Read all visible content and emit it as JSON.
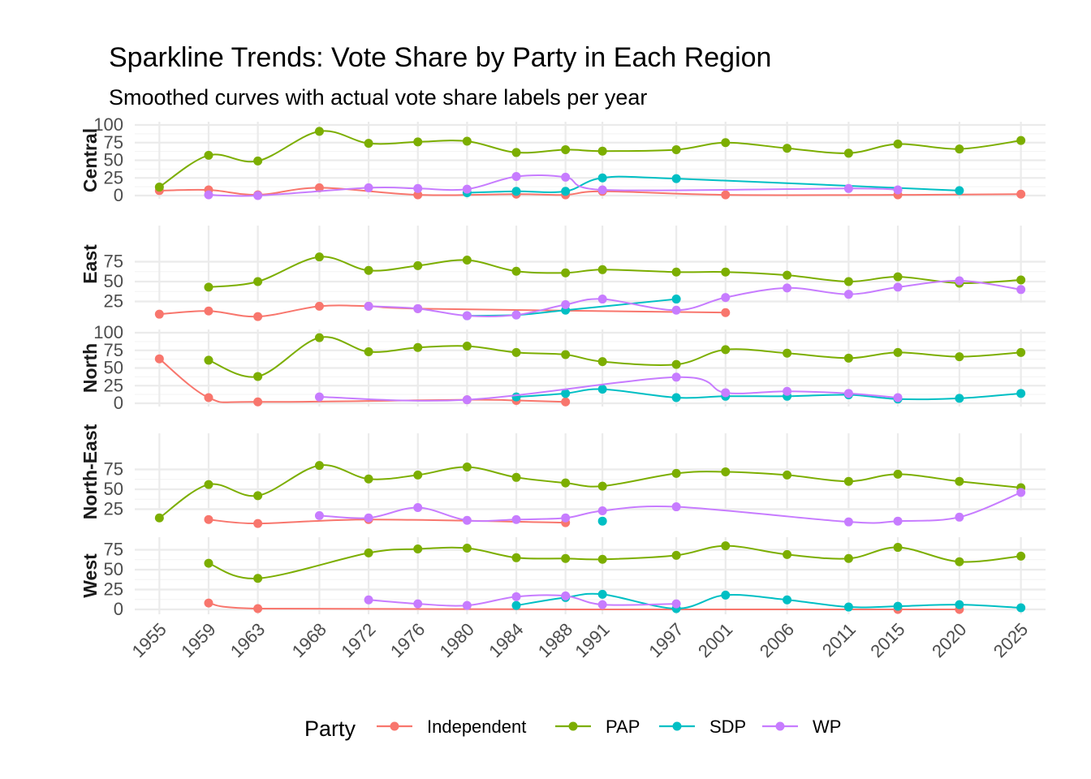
{
  "chart_data": {
    "type": "line",
    "title": "Sparkline Trends: Vote Share by Party in Each Region",
    "subtitle": "Smoothed curves with actual vote share labels per year",
    "x_ticks": [
      1955,
      1959,
      1963,
      1968,
      1972,
      1976,
      1980,
      1984,
      1988,
      1991,
      1997,
      2001,
      2006,
      2011,
      2015,
      2020,
      2025
    ],
    "legend": {
      "title": "Party",
      "position": "bottom",
      "entries": [
        "Independent",
        "PAP",
        "SDP",
        "WP"
      ]
    },
    "colors": {
      "Independent": "#F8766D",
      "PAP": "#7CAE00",
      "SDP": "#00BFC4",
      "WP": "#C77CFF"
    },
    "facets": [
      {
        "region": "Central",
        "ylim": [
          0,
          100
        ],
        "yticks": [
          0,
          25,
          50,
          75,
          100
        ],
        "series": [
          {
            "name": "Independent",
            "x": [
              1955,
              1959,
              1963,
              1968,
              1976,
              1984,
              1988,
              1991,
              2001,
              2015,
              2025
            ],
            "y": [
              7,
              8,
              1,
              11,
              1,
              2,
              1,
              6,
              1,
              1,
              2
            ]
          },
          {
            "name": "PAP",
            "x": [
              1955,
              1959,
              1963,
              1968,
              1972,
              1976,
              1980,
              1984,
              1988,
              1991,
              1997,
              2001,
              2006,
              2011,
              2015,
              2020,
              2025
            ],
            "y": [
              12,
              57,
              49,
              91,
              74,
              76,
              77,
              61,
              65,
              63,
              65,
              75,
              67,
              60,
              73,
              66,
              78
            ]
          },
          {
            "name": "SDP",
            "x": [
              1980,
              1984,
              1988,
              1991,
              1997,
              2020
            ],
            "y": [
              4,
              6,
              6,
              25,
              24,
              7
            ]
          },
          {
            "name": "WP",
            "x": [
              1959,
              1963,
              1972,
              1976,
              1980,
              1984,
              1988,
              1991,
              2011,
              2015
            ],
            "y": [
              1,
              0,
              11,
              10,
              9,
              27,
              26,
              8,
              10,
              8
            ]
          }
        ]
      },
      {
        "region": "East",
        "ylim": [
          0,
          90
        ],
        "yticks": [
          25,
          50,
          75
        ],
        "series": [
          {
            "name": "Independent",
            "x": [
              1955,
              1959,
              1963,
              1968,
              1972,
              1976,
              2001
            ],
            "y": [
              9,
              13,
              6,
              19,
              19,
              16,
              11
            ]
          },
          {
            "name": "PAP",
            "x": [
              1959,
              1963,
              1968,
              1972,
              1976,
              1980,
              1984,
              1988,
              1991,
              1997,
              2001,
              2006,
              2011,
              2015,
              2020,
              2025
            ],
            "y": [
              43,
              50,
              81,
              64,
              70,
              77,
              63,
              61,
              65,
              62,
              62,
              58,
              50,
              56,
              48,
              52
            ]
          },
          {
            "name": "SDP",
            "x": [
              1980,
              1984,
              1988,
              1997
            ],
            "y": [
              7,
              8,
              14,
              28
            ]
          },
          {
            "name": "WP",
            "x": [
              1972,
              1976,
              1980,
              1984,
              1988,
              1991,
              1997,
              2001,
              2006,
              2011,
              2015,
              2020,
              2025
            ],
            "y": [
              19,
              16,
              7,
              8,
              21,
              28,
              14,
              30,
              42,
              34,
              43,
              51,
              40
            ]
          }
        ]
      },
      {
        "region": "North",
        "ylim": [
          0,
          100
        ],
        "yticks": [
          0,
          25,
          50,
          75,
          100
        ],
        "series": [
          {
            "name": "Independent",
            "x": [
              1955,
              1959,
              1963,
              1980,
              1984,
              1988
            ],
            "y": [
              63,
              8,
              2,
              5,
              4,
              2
            ]
          },
          {
            "name": "PAP",
            "x": [
              1959,
              1963,
              1968,
              1972,
              1976,
              1980,
              1984,
              1988,
              1991,
              1997,
              2001,
              2006,
              2011,
              2015,
              2020,
              2025
            ],
            "y": [
              61,
              38,
              93,
              73,
              79,
              81,
              72,
              69,
              59,
              55,
              76,
              71,
              64,
              72,
              66,
              72
            ]
          },
          {
            "name": "SDP",
            "x": [
              1984,
              1988,
              1991,
              1997,
              2001,
              2006,
              2011,
              2015,
              2020,
              2025
            ],
            "y": [
              9,
              14,
              20,
              8,
              10,
              10,
              12,
              6,
              7,
              14
            ]
          },
          {
            "name": "WP",
            "x": [
              1968,
              1980,
              1997,
              2001,
              2006,
              2011,
              2015
            ],
            "y": [
              9,
              5,
              37,
              15,
              17,
              14,
              8
            ]
          }
        ]
      },
      {
        "region": "North-East",
        "ylim": [
          0,
          90
        ],
        "yticks": [
          25,
          50,
          75
        ],
        "series": [
          {
            "name": "Independent",
            "x": [
              1959,
              1963,
              1972,
              1988
            ],
            "y": [
              12,
              7,
              12,
              8
            ]
          },
          {
            "name": "PAP",
            "x": [
              1955,
              1959,
              1963,
              1968,
              1972,
              1976,
              1980,
              1984,
              1988,
              1991,
              1997,
              2001,
              2006,
              2011,
              2015,
              2020,
              2025
            ],
            "y": [
              14,
              56,
              42,
              80,
              63,
              68,
              78,
              65,
              58,
              54,
              70,
              72,
              68,
              60,
              69,
              60,
              52
            ]
          },
          {
            "name": "SDP",
            "x": [
              1991
            ],
            "y": [
              10
            ]
          },
          {
            "name": "WP",
            "x": [
              1968,
              1972,
              1976,
              1980,
              1984,
              1988,
              1991,
              1997,
              2011,
              2015,
              2020,
              2025
            ],
            "y": [
              17,
              14,
              27,
              11,
              12,
              14,
              23,
              28,
              9,
              10,
              15,
              46
            ]
          }
        ]
      },
      {
        "region": "West",
        "ylim": [
          0,
          90
        ],
        "yticks": [
          0,
          25,
          50,
          75
        ],
        "series": [
          {
            "name": "Independent",
            "x": [
              1959,
              1963,
              2015,
              2020
            ],
            "y": [
              8,
              1,
              0,
              0
            ]
          },
          {
            "name": "PAP",
            "x": [
              1959,
              1963,
              1972,
              1976,
              1980,
              1984,
              1988,
              1991,
              1997,
              2001,
              2006,
              2011,
              2015,
              2020,
              2025
            ],
            "y": [
              58,
              39,
              71,
              76,
              77,
              65,
              64,
              63,
              68,
              80,
              69,
              64,
              78,
              60,
              67
            ]
          },
          {
            "name": "SDP",
            "x": [
              1984,
              1988,
              1991,
              1997,
              2001,
              2006,
              2011,
              2015,
              2020,
              2025
            ],
            "y": [
              5,
              15,
              19,
              1,
              18,
              12,
              3,
              4,
              6,
              2
            ]
          },
          {
            "name": "WP",
            "x": [
              1972,
              1976,
              1980,
              1984,
              1988,
              1991,
              1997
            ],
            "y": [
              12,
              7,
              5,
              16,
              17,
              6,
              7
            ]
          }
        ]
      }
    ]
  }
}
